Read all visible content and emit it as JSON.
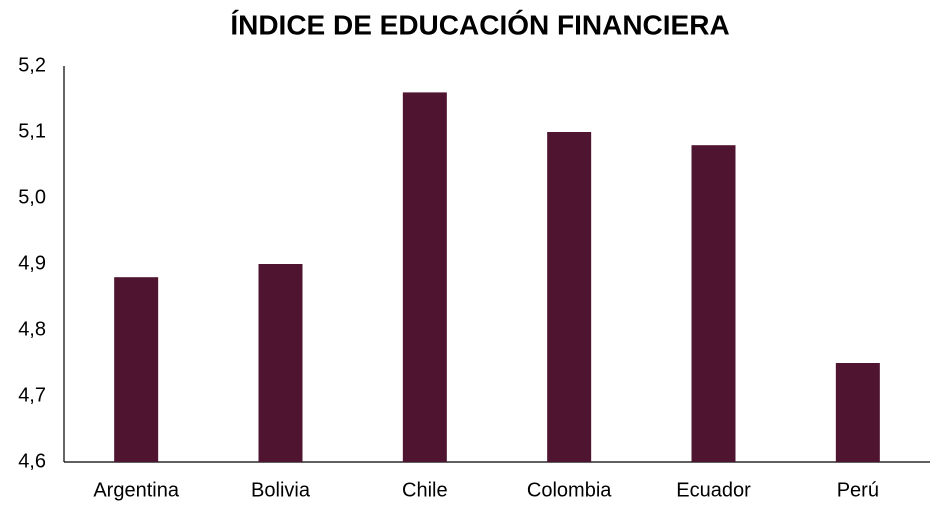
{
  "chart_data": {
    "type": "bar",
    "title": "ÍNDICE DE EDUCACIÓN FINANCIERA",
    "categories": [
      "Argentina",
      "Bolivia",
      "Chile",
      "Colombia",
      "Ecuador",
      "Perú"
    ],
    "values": [
      4.88,
      4.9,
      5.16,
      5.1,
      5.08,
      4.75
    ],
    "color": "#4f1430",
    "ylim": [
      4.6,
      5.2
    ],
    "yticks": [
      {
        "value": 4.6,
        "label": "4,6"
      },
      {
        "value": 4.7,
        "label": "4,7"
      },
      {
        "value": 4.8,
        "label": "4,8"
      },
      {
        "value": 4.9,
        "label": "4,9"
      },
      {
        "value": 5.0,
        "label": "5,0"
      },
      {
        "value": 5.1,
        "label": "5,1"
      },
      {
        "value": 5.2,
        "label": "5,2"
      }
    ],
    "grid": false
  }
}
